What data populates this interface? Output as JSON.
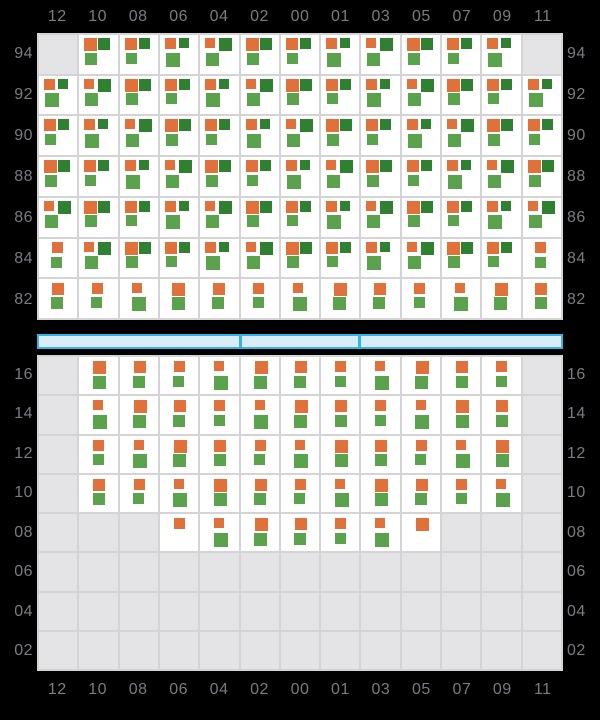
{
  "colors": {
    "background": "#000000",
    "label": "#7b7b83",
    "cell_bg": "#ffffff",
    "empty_cell": "#e4e4e6",
    "gridline": "#d4d4d6",
    "orange": "#e0713a",
    "dark_green": "#2f8030",
    "green": "#5aa34c",
    "bar_fill": "#d9edf8",
    "bar_border": "#36b3e6"
  },
  "chart_data": {
    "type": "heatmap",
    "title": "",
    "xlabel": "",
    "ylabel": "",
    "grid": true,
    "legend": "none",
    "x_categories": [
      "12",
      "10",
      "08",
      "06",
      "04",
      "02",
      "00",
      "01",
      "03",
      "05",
      "07",
      "09",
      "11"
    ],
    "cell_codes": {
      "T": "triple mark: orange top-left + dark-green top-right + green bottom-left",
      "S": "stacked pair: orange square over green square",
      "O": "orange square only",
      ".": "empty gray cell"
    },
    "mark_colors": {
      "orange": "#e0713a",
      "dark_green": "#2f8030",
      "green": "#5aa34c"
    },
    "panels": [
      {
        "name": "top",
        "y_categories": [
          "94",
          "92",
          "90",
          "88",
          "86",
          "84",
          "82"
        ],
        "rows": [
          {
            "label": "94",
            "cells": [
              ".",
              "T",
              "T",
              "T",
              "T",
              "T",
              "T",
              "T",
              "T",
              "T",
              "T",
              "T",
              "."
            ]
          },
          {
            "label": "92",
            "cells": [
              "T",
              "T",
              "T",
              "T",
              "T",
              "T",
              "T",
              "T",
              "T",
              "T",
              "T",
              "T",
              "T"
            ]
          },
          {
            "label": "90",
            "cells": [
              "T",
              "T",
              "T",
              "T",
              "T",
              "T",
              "T",
              "T",
              "T",
              "T",
              "T",
              "T",
              "T"
            ]
          },
          {
            "label": "88",
            "cells": [
              "T",
              "T",
              "T",
              "T",
              "T",
              "T",
              "T",
              "T",
              "T",
              "T",
              "T",
              "T",
              "T"
            ]
          },
          {
            "label": "86",
            "cells": [
              "T",
              "T",
              "T",
              "T",
              "T",
              "T",
              "T",
              "T",
              "T",
              "T",
              "T",
              "T",
              "T"
            ]
          },
          {
            "label": "84",
            "cells": [
              "S",
              "T",
              "T",
              "T",
              "T",
              "T",
              "T",
              "T",
              "T",
              "T",
              "T",
              "T",
              "S"
            ]
          },
          {
            "label": "82",
            "cells": [
              "S",
              "S",
              "S",
              "S",
              "S",
              "S",
              "S",
              "S",
              "S",
              "S",
              "S",
              "S",
              "S"
            ]
          }
        ]
      },
      {
        "name": "bottom",
        "y_categories": [
          "16",
          "14",
          "12",
          "10",
          "08",
          "06",
          "04",
          "02"
        ],
        "rows": [
          {
            "label": "16",
            "cells": [
              ".",
              "S",
              "S",
              "S",
              "S",
              "S",
              "S",
              "S",
              "S",
              "S",
              "S",
              "S",
              "."
            ]
          },
          {
            "label": "14",
            "cells": [
              ".",
              "S",
              "S",
              "S",
              "S",
              "S",
              "S",
              "S",
              "S",
              "S",
              "S",
              "S",
              "."
            ]
          },
          {
            "label": "12",
            "cells": [
              ".",
              "S",
              "S",
              "S",
              "S",
              "S",
              "S",
              "S",
              "S",
              "S",
              "S",
              "S",
              "."
            ]
          },
          {
            "label": "10",
            "cells": [
              ".",
              "S",
              "S",
              "S",
              "S",
              "S",
              "S",
              "S",
              "S",
              "S",
              "S",
              "S",
              "."
            ]
          },
          {
            "label": "08",
            "cells": [
              ".",
              ".",
              ".",
              "O",
              "S",
              "S",
              "S",
              "S",
              "S",
              "O",
              ".",
              ".",
              "."
            ]
          },
          {
            "label": "06",
            "cells": [
              ".",
              ".",
              ".",
              ".",
              ".",
              ".",
              ".",
              ".",
              ".",
              ".",
              ".",
              ".",
              "."
            ]
          },
          {
            "label": "04",
            "cells": [
              ".",
              ".",
              ".",
              ".",
              ".",
              ".",
              ".",
              ".",
              ".",
              ".",
              ".",
              ".",
              "."
            ]
          },
          {
            "label": "02",
            "cells": [
              ".",
              ".",
              ".",
              ".",
              ".",
              ".",
              ".",
              ".",
              ".",
              ".",
              ".",
              ".",
              "."
            ]
          }
        ]
      }
    ],
    "divider_bar": {
      "segment_count": 3,
      "notch_positions_pct": [
        38.6,
        61.4
      ]
    }
  }
}
